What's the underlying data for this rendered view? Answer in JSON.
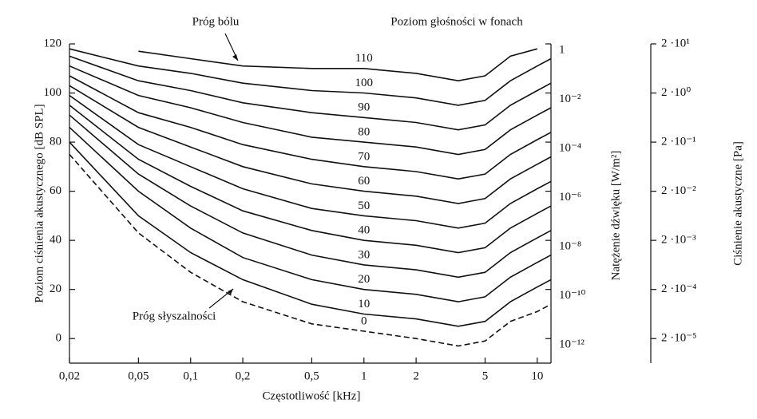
{
  "chart_data": {
    "type": "line",
    "annotations": [
      "Próg bólu",
      "Poziom głośności w fonach",
      "Próg słyszalności"
    ],
    "xlabel": "Częstotliwość [kHz]",
    "ylabel": "Poziom ciśnienia akustycznego [dB SPL]",
    "y2label": "Natężenie dźwięku [W/m²]",
    "y3label": "Ciśnienie akustyczne [Pa]",
    "x": [
      0.02,
      0.05,
      0.1,
      0.2,
      0.5,
      1,
      2,
      3.5,
      5,
      7,
      10,
      12
    ],
    "xscale": "log",
    "xlim": [
      0.02,
      12
    ],
    "xticks": [
      {
        "value": 0.02,
        "label": "0,02"
      },
      {
        "value": 0.05,
        "label": "0,05"
      },
      {
        "value": 0.1,
        "label": "0,1"
      },
      {
        "value": 0.2,
        "label": "0,2"
      },
      {
        "value": 0.5,
        "label": "0,5"
      },
      1,
      2,
      5,
      10
    ],
    "ylim": [
      -10,
      120
    ],
    "yticks": [
      0,
      20,
      40,
      60,
      80,
      100,
      120
    ],
    "y2scale": "log",
    "y2lim": [
      1e-13,
      1
    ],
    "y2ticks": [
      1,
      {
        "value": 0.01,
        "label": "10⁻²"
      },
      {
        "value": 0.0001,
        "label": "10⁻⁴"
      },
      {
        "value": 1e-06,
        "label": "10⁻⁶"
      },
      {
        "value": 1e-08,
        "label": "10⁻⁸"
      },
      {
        "value": 1e-10,
        "label": "10⁻¹⁰"
      },
      {
        "value": 1e-12,
        "label": "10⁻¹²"
      }
    ],
    "y3scale": "log",
    "y3lim": [
      6.3246e-06,
      20
    ],
    "y3ticks": [
      {
        "value": 20,
        "label": "2 ·10¹"
      },
      {
        "value": 2,
        "label": "2 ·10⁰"
      },
      {
        "value": 0.2,
        "label": "2 ·10⁻¹"
      },
      {
        "value": 0.02,
        "label": "2 ·10⁻²"
      },
      {
        "value": 0.002,
        "label": "2 ·10⁻³"
      },
      {
        "value": 0.0002,
        "label": "2 ·10⁻⁴"
      },
      {
        "value": 2e-05,
        "label": "2 ·10⁻⁵"
      }
    ],
    "series": [
      {
        "name": "0",
        "color": "#111111",
        "dashed": true,
        "values": [
          75,
          43,
          27,
          15,
          6,
          3,
          0,
          -3,
          -1,
          7,
          11,
          14
        ]
      },
      {
        "name": "10",
        "color": "#111111",
        "values": [
          80,
          50,
          35,
          24,
          14,
          10,
          8,
          5,
          7,
          15,
          21,
          24
        ]
      },
      {
        "name": "20",
        "color": "#111111",
        "values": [
          86,
          60,
          45,
          33,
          24,
          20,
          18,
          15,
          17,
          25,
          31,
          34
        ]
      },
      {
        "name": "30",
        "color": "#111111",
        "values": [
          91,
          67,
          54,
          43,
          34,
          30,
          28,
          25,
          27,
          35,
          41,
          44
        ]
      },
      {
        "name": "40",
        "color": "#111111",
        "values": [
          95,
          73,
          62,
          52,
          44,
          40,
          38,
          35,
          37,
          45,
          51,
          54
        ]
      },
      {
        "name": "50",
        "color": "#111111",
        "values": [
          99,
          79,
          70,
          61,
          53,
          50,
          48,
          45,
          47,
          55,
          61,
          64
        ]
      },
      {
        "name": "60",
        "color": "#111111",
        "values": [
          103,
          86,
          78,
          70,
          63,
          60,
          58,
          55,
          57,
          65,
          71,
          74
        ]
      },
      {
        "name": "70",
        "color": "#111111",
        "values": [
          107,
          92,
          86,
          79,
          73,
          70,
          68,
          65,
          67,
          75,
          81,
          84
        ]
      },
      {
        "name": "80",
        "color": "#111111",
        "values": [
          111,
          99,
          94,
          88,
          82,
          80,
          78,
          75,
          77,
          85,
          91,
          94
        ]
      },
      {
        "name": "90",
        "color": "#111111",
        "values": [
          115,
          105,
          101,
          96,
          92,
          90,
          88,
          85,
          87,
          95,
          101,
          104
        ]
      },
      {
        "name": "100",
        "color": "#111111",
        "values": [
          118,
          111,
          108,
          104,
          101,
          100,
          98,
          95,
          97,
          105,
          111,
          114
        ]
      },
      {
        "name": "110",
        "color": "#111111",
        "values": [
          null,
          117,
          114,
          111,
          110,
          110,
          108,
          105,
          107,
          115,
          118,
          null
        ]
      }
    ]
  }
}
